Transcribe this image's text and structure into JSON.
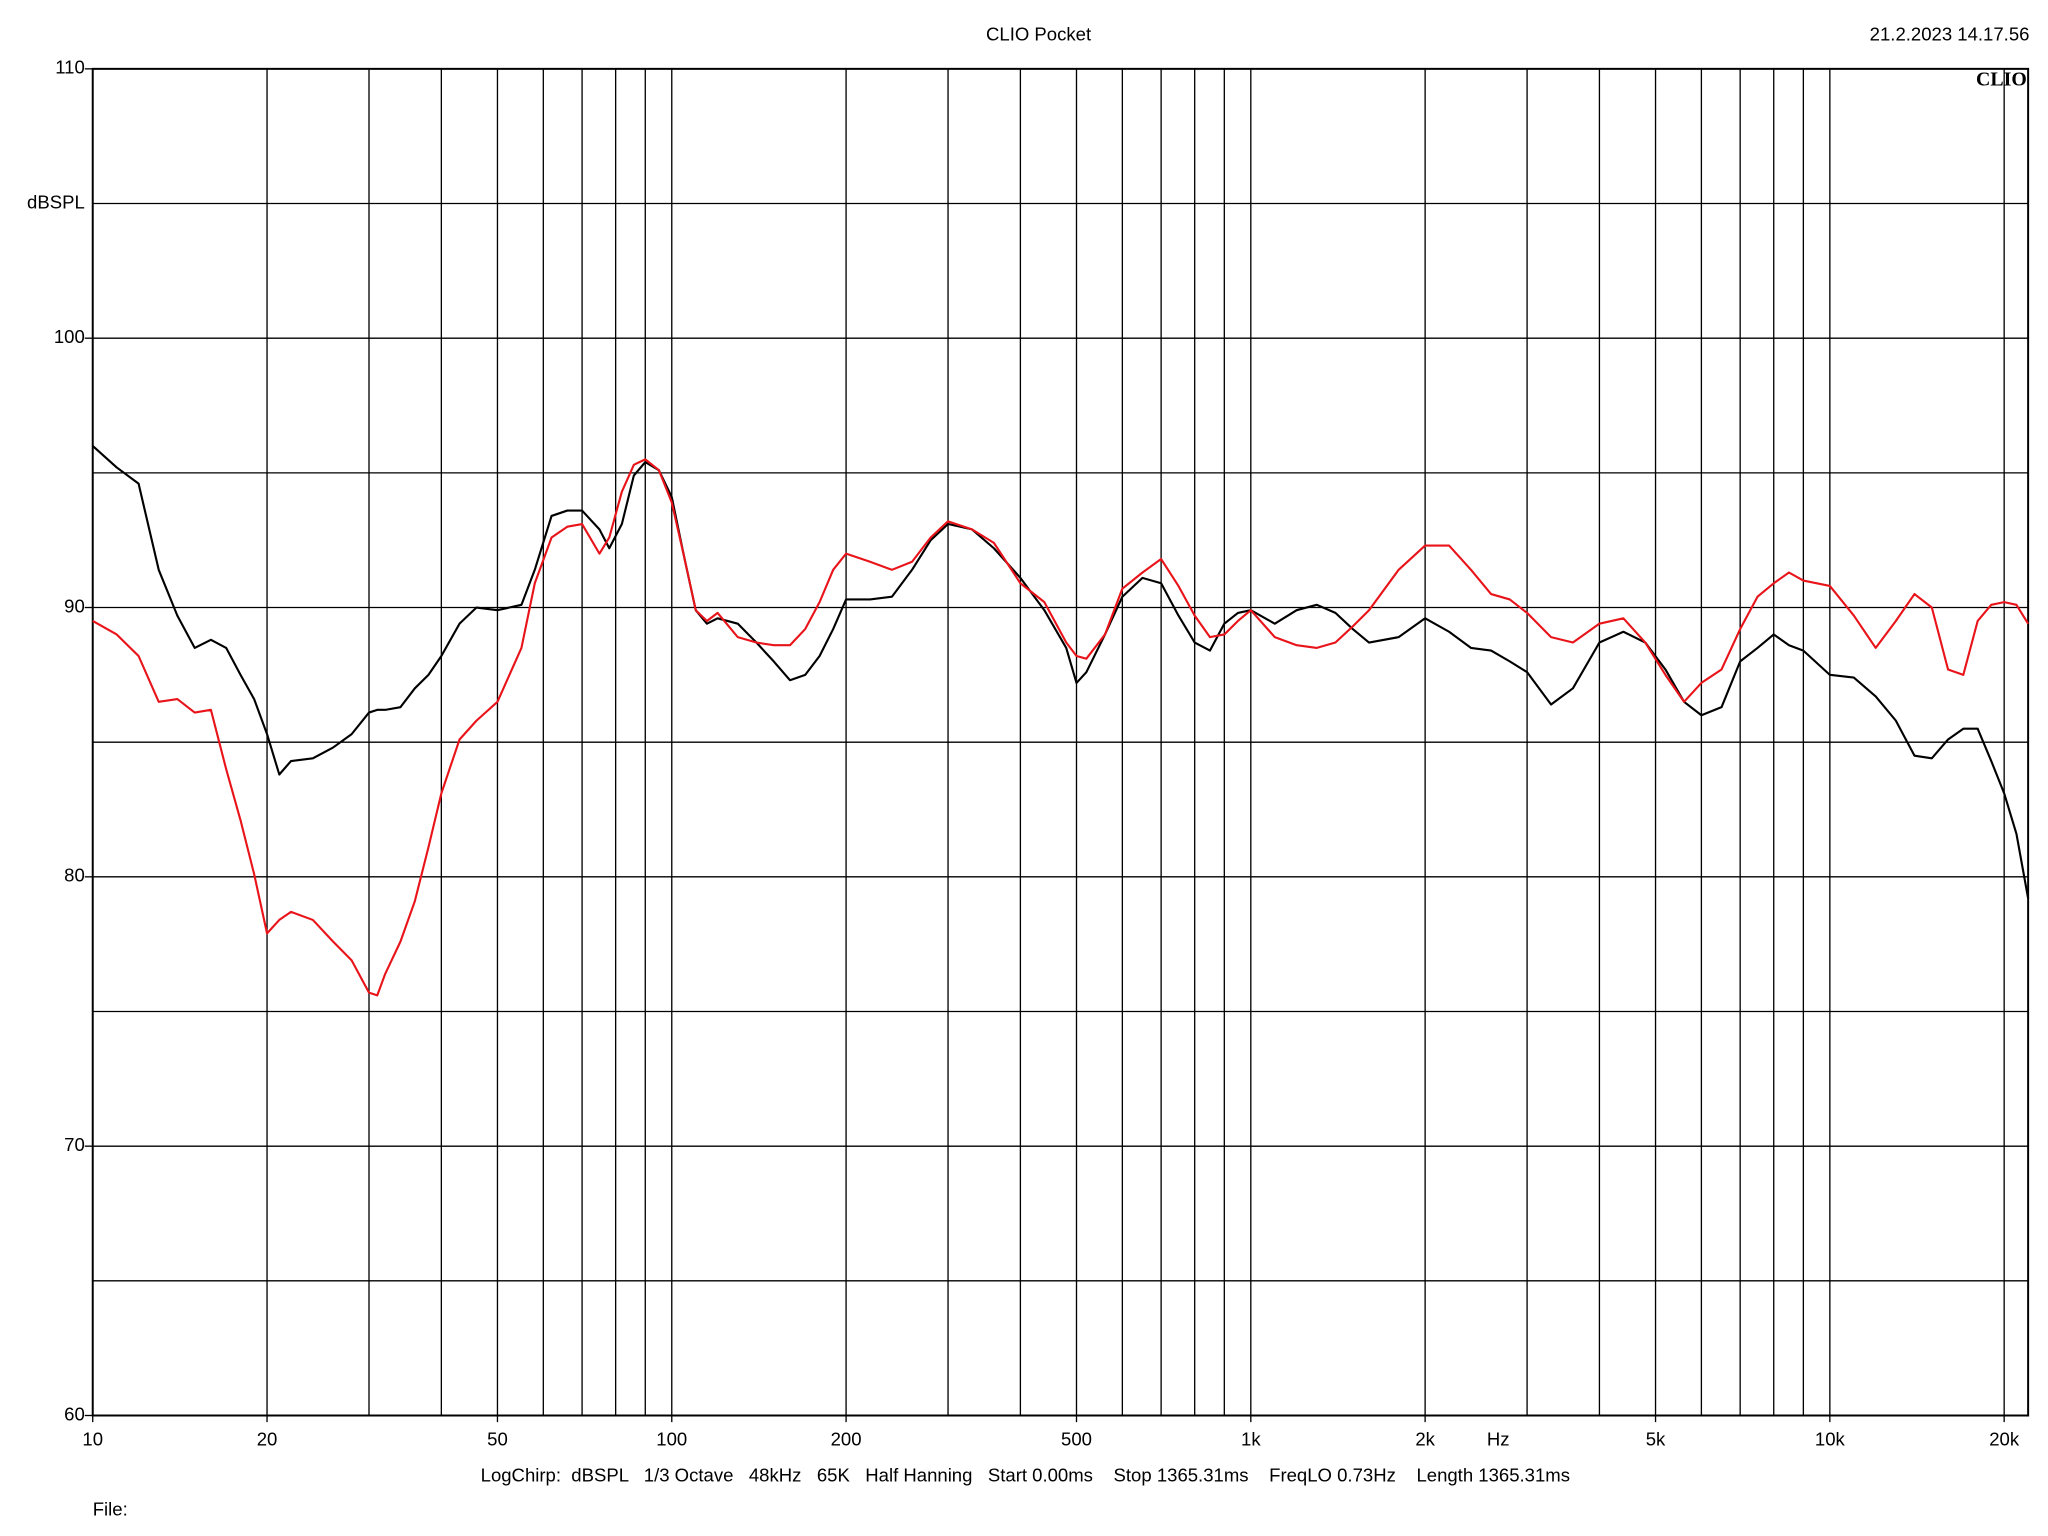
{
  "chart_data": {
    "type": "line",
    "title": "CLIO Pocket",
    "timestamp": "21.2.2023 14.17.56",
    "logo": "CLIO",
    "ylabel": "dBSPL",
    "xlabel": "Hz",
    "footer": "LogChirp:  dBSPL   1/3 Octave   48kHz   65K   Half Hanning   Start 0.00ms    Stop 1365.31ms    FreqLO 0.73Hz    Length 1365.31ms",
    "file_label": "File:",
    "xlog": true,
    "xlim": [
      10,
      22000
    ],
    "ylim": [
      60,
      110
    ],
    "xticks": [
      10,
      20,
      50,
      100,
      200,
      500,
      {
        "value": 1000,
        "label": "1k"
      },
      {
        "value": 2000,
        "label": "2k"
      },
      {
        "value": 5000,
        "label": "5k"
      },
      {
        "value": 10000,
        "label": "10k"
      },
      {
        "value": 20000,
        "label": "20k"
      }
    ],
    "yticks": [
      60,
      70,
      80,
      90,
      100,
      110
    ],
    "xgrid": [
      10,
      20,
      30,
      40,
      50,
      60,
      70,
      80,
      90,
      100,
      200,
      300,
      400,
      500,
      600,
      700,
      800,
      900,
      1000,
      2000,
      3000,
      4000,
      5000,
      6000,
      7000,
      8000,
      9000,
      10000,
      20000
    ],
    "ygrid": [
      60,
      65,
      70,
      75,
      80,
      85,
      90,
      95,
      100,
      105,
      110
    ],
    "x": [
      10,
      11,
      12,
      13,
      14,
      15,
      16,
      17,
      18,
      19,
      20,
      21,
      22,
      24,
      26,
      28,
      30,
      31,
      32,
      34,
      36,
      38,
      40,
      43,
      46,
      50,
      55,
      58,
      62,
      66,
      70,
      75,
      78,
      82,
      86,
      90,
      95,
      100,
      105,
      110,
      115,
      120,
      130,
      140,
      150,
      160,
      170,
      180,
      190,
      200,
      220,
      240,
      260,
      280,
      300,
      330,
      360,
      400,
      440,
      480,
      500,
      520,
      560,
      600,
      650,
      700,
      750,
      800,
      850,
      900,
      950,
      1000,
      1100,
      1200,
      1300,
      1400,
      1500,
      1600,
      1800,
      2000,
      2200,
      2400,
      2600,
      2800,
      3000,
      3300,
      3600,
      4000,
      4400,
      4800,
      5200,
      5600,
      6000,
      6500,
      7000,
      7500,
      8000,
      8500,
      9000,
      10000,
      11000,
      12000,
      13000,
      14000,
      15000,
      16000,
      17000,
      18000,
      19000,
      20000,
      21000,
      22000
    ],
    "series": [
      {
        "color": "#000000",
        "values": [
          96.0,
          95.2,
          94.6,
          91.4,
          89.7,
          88.5,
          88.8,
          88.5,
          87.5,
          86.6,
          85.3,
          83.8,
          84.3,
          84.4,
          84.8,
          85.3,
          86.1,
          86.2,
          86.2,
          86.3,
          87.0,
          87.5,
          88.2,
          89.4,
          90.0,
          89.9,
          90.1,
          91.4,
          93.4,
          93.6,
          93.6,
          92.9,
          92.2,
          93.1,
          94.9,
          95.4,
          95.1,
          94.1,
          91.9,
          89.9,
          89.4,
          89.6,
          89.4,
          88.7,
          88.0,
          87.3,
          87.5,
          88.2,
          89.2,
          90.3,
          90.3,
          90.4,
          91.4,
          92.5,
          93.1,
          92.9,
          92.2,
          91.1,
          89.9,
          88.5,
          87.2,
          87.6,
          89.0,
          90.4,
          91.1,
          90.9,
          89.7,
          88.7,
          88.4,
          89.4,
          89.8,
          89.9,
          89.4,
          89.9,
          90.1,
          89.8,
          89.2,
          88.7,
          88.9,
          89.6,
          89.1,
          88.5,
          88.4,
          88.0,
          87.6,
          86.4,
          87.0,
          88.7,
          89.1,
          88.7,
          87.7,
          86.5,
          86.0,
          86.3,
          88.0,
          88.5,
          89.0,
          88.6,
          88.4,
          87.5,
          87.4,
          86.7,
          85.8,
          84.5,
          84.4,
          85.1,
          85.5,
          85.5,
          84.3,
          83.1,
          81.6,
          79.2
        ]
      },
      {
        "color": "#e8141a",
        "values": [
          89.5,
          89.0,
          88.2,
          86.5,
          86.6,
          86.1,
          86.2,
          84.0,
          82.1,
          80.1,
          77.9,
          78.4,
          78.7,
          78.4,
          77.6,
          76.9,
          75.7,
          75.6,
          76.4,
          77.6,
          79.1,
          81.1,
          83.1,
          85.1,
          85.8,
          86.5,
          88.5,
          90.9,
          92.6,
          93.0,
          93.1,
          92.0,
          92.6,
          94.3,
          95.3,
          95.5,
          95.1,
          93.9,
          91.9,
          89.9,
          89.5,
          89.8,
          88.9,
          88.7,
          88.6,
          88.6,
          89.2,
          90.2,
          91.4,
          92.0,
          91.7,
          91.4,
          91.7,
          92.6,
          93.2,
          92.9,
          92.4,
          90.9,
          90.2,
          88.7,
          88.2,
          88.1,
          89.0,
          90.7,
          91.3,
          91.8,
          90.8,
          89.7,
          88.9,
          89.0,
          89.5,
          89.9,
          88.9,
          88.6,
          88.5,
          88.7,
          89.3,
          89.9,
          91.4,
          92.3,
          92.3,
          91.4,
          90.5,
          90.3,
          89.8,
          88.9,
          88.7,
          89.4,
          89.6,
          88.7,
          87.5,
          86.5,
          87.2,
          87.7,
          89.2,
          90.4,
          90.9,
          91.3,
          91.0,
          90.8,
          89.7,
          88.5,
          89.5,
          90.5,
          90.0,
          87.7,
          87.5,
          89.5,
          90.1,
          90.2,
          90.1,
          89.4
        ]
      }
    ]
  }
}
